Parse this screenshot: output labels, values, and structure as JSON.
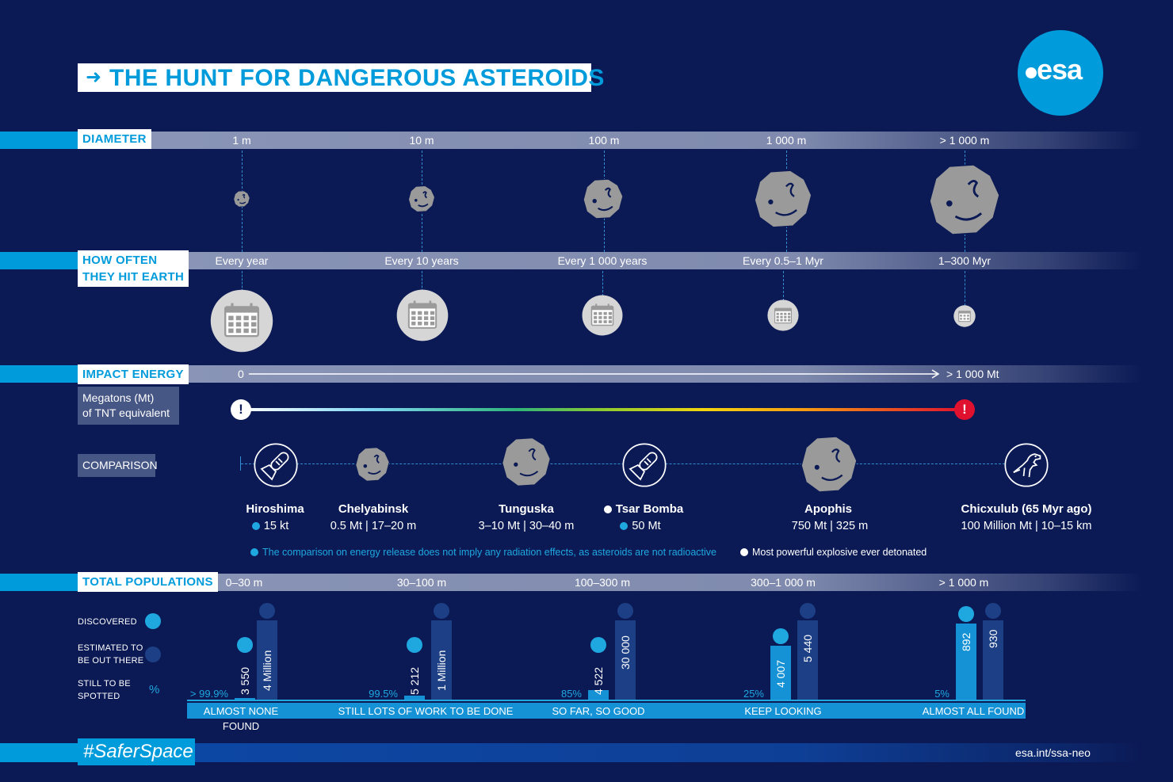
{
  "title": "THE HUNT FOR DANGEROUS ASTEROIDS",
  "logo": "esa",
  "colors": {
    "background": "#0b1a55",
    "accent": "#009bdb",
    "band": "#8c97b8",
    "asteroid": "#9a9a9a",
    "danger": "#e0102f"
  },
  "diameter": {
    "label": "DIAMETER",
    "values": [
      "1 m",
      "10 m",
      "100 m",
      "1 000 m",
      "> 1 000 m"
    ]
  },
  "frequency": {
    "label_line1": "HOW OFTEN",
    "label_line2": "THEY HIT EARTH",
    "values": [
      "Every year",
      "Every 10 years",
      "Every 1 000 years",
      "Every 0.5–1 Myr",
      "1–300 Myr"
    ]
  },
  "energy": {
    "label": "IMPACT ENERGY",
    "unit_line1": "Megatons (Mt)",
    "unit_line2": "of TNT equivalent",
    "start": "0",
    "end": "> 1 000 Mt"
  },
  "comparison": {
    "label": "COMPARISON",
    "items": [
      {
        "name": "Hiroshima",
        "value": "15 kt",
        "icon": "bomb-icon"
      },
      {
        "name": "Chelyabinsk",
        "value": "0.5 Mt | 17–20 m",
        "icon": "asteroid-icon"
      },
      {
        "name": "Tunguska",
        "value": "3–10 Mt | 30–40 m",
        "icon": "asteroid-icon"
      },
      {
        "name": "Tsar Bomba",
        "value": "50 Mt",
        "icon": "bomb-icon"
      },
      {
        "name": "Apophis",
        "value": "750 Mt | 325 m",
        "icon": "asteroid-icon"
      },
      {
        "name": "Chicxulub (65 Myr ago)",
        "value": "100 Million Mt | 10–15 km",
        "icon": "dinosaur-icon"
      }
    ],
    "note_radiation": "The comparison on energy release does not imply any radiation effects, as asteroids are not radioactive",
    "note_tsar": "Most powerful explosive ever detonated"
  },
  "populations": {
    "label": "TOTAL POPULATIONS",
    "legend": {
      "discovered": "DISCOVERED",
      "estimated_line1": "ESTIMATED TO",
      "estimated_line2": "BE OUT THERE",
      "still_line1": "STILL TO BE",
      "still_line2": "SPOTTED",
      "percent_symbol": "%"
    },
    "groups": [
      {
        "range": "0–30 m",
        "discovered": "3 550",
        "estimated": "4 Million",
        "still": "> 99.9%",
        "status": "ALMOST NONE FOUND",
        "fraction_found": 0.001
      },
      {
        "range": "30–100 m",
        "discovered": "5 212",
        "estimated": "1 Million",
        "still": "99.5%",
        "status": "STILL LOTS OF WORK TO BE DONE",
        "fraction_found": 0.005
      },
      {
        "range": "100–300 m",
        "discovered": "4 522",
        "estimated": "30 000",
        "still": "85%",
        "status": "SO FAR, SO GOOD",
        "fraction_found": 0.15
      },
      {
        "range": "300–1 000 m",
        "discovered": "4 007",
        "estimated": "5 440",
        "still": "25%",
        "status": "KEEP LOOKING",
        "fraction_found": 0.74
      },
      {
        "range": "> 1 000 m",
        "discovered": "892",
        "estimated": "930",
        "still": "5%",
        "status": "ALMOST ALL FOUND",
        "fraction_found": 0.96
      }
    ]
  },
  "footer": {
    "hashtag": "#SaferSpace",
    "url": "esa.int/ssa-neo"
  }
}
